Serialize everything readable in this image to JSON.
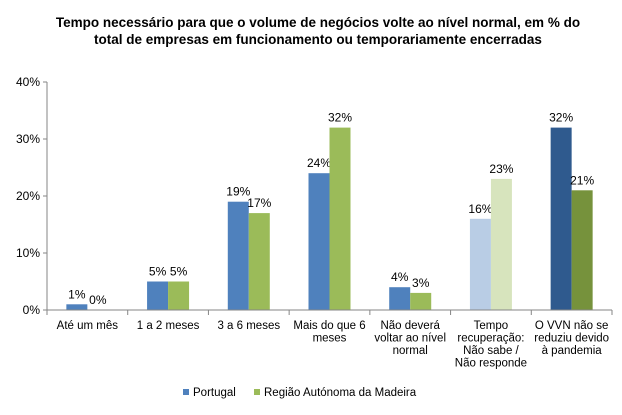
{
  "chart_data": {
    "type": "bar",
    "title": "Tempo necessário para que o volume de negócios volte ao nível normal, em %  do total de empresas em funcionamento ou temporariamente encerradas",
    "categories": [
      "Até um mês",
      "1 a 2 meses",
      "3 a 6 meses",
      "Mais do que 6 meses",
      "Não deverá voltar ao nível normal",
      "Tempo recuperação: Não sabe / Não responde",
      "O VVN não se reduziu devido à pandemia"
    ],
    "series": [
      {
        "name": "Portugal",
        "values": [
          1,
          5,
          19,
          24,
          4,
          16,
          32
        ],
        "labels": [
          "1%",
          "5%",
          "19%",
          "24%",
          "4%",
          "16%",
          "32%"
        ],
        "color": "#4F81BD",
        "point_colors": [
          "#4F81BD",
          "#4F81BD",
          "#4F81BD",
          "#4F81BD",
          "#4F81BD",
          "#B9CDE5",
          "#2F5A8E"
        ]
      },
      {
        "name": "Região Autónoma da Madeira",
        "values": [
          0,
          5,
          17,
          32,
          3,
          23,
          21
        ],
        "labels": [
          "0%",
          "5%",
          "17%",
          "32%",
          "3%",
          "23%",
          "21%"
        ],
        "color": "#9BBB59",
        "point_colors": [
          "#9BBB59",
          "#9BBB59",
          "#9BBB59",
          "#9BBB59",
          "#9BBB59",
          "#D7E4BD",
          "#76923C"
        ]
      }
    ],
    "yticks": [
      "0%",
      "10%",
      "20%",
      "30%",
      "40%"
    ],
    "ylim": [
      0,
      40
    ],
    "legend_position": "bottom",
    "grid": true
  }
}
